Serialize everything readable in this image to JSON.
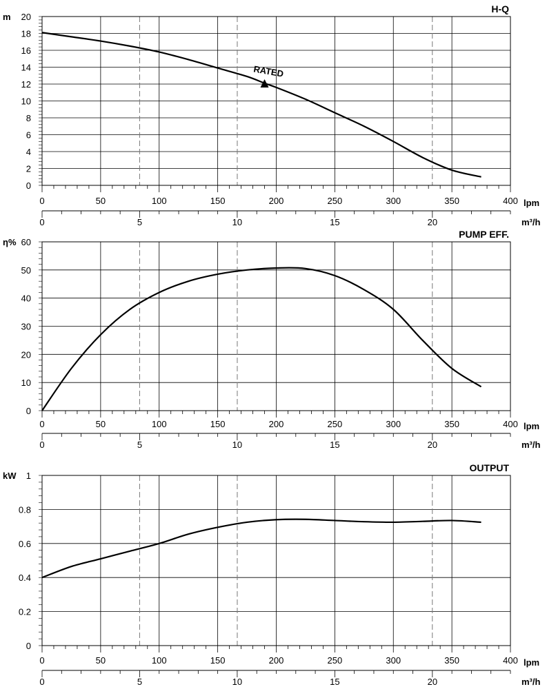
{
  "chart_data": [
    {
      "type": "line",
      "title": "H-Q",
      "ylabel": "m",
      "ylim": [
        0,
        20
      ],
      "yticks": [
        "0",
        "2",
        "4",
        "6",
        "8",
        "10",
        "12",
        "14",
        "16",
        "18",
        "20"
      ],
      "xlabel_primary": "lpm",
      "xlabel_secondary": "m³/h",
      "xlim": [
        0,
        400
      ],
      "xticks_primary": [
        "0",
        "50",
        "100",
        "150",
        "200",
        "250",
        "300",
        "350",
        "400"
      ],
      "xticks_secondary": [
        "0",
        "5",
        "10",
        "15",
        "20"
      ],
      "dashed_x": [
        83.3,
        166.7,
        333.3
      ],
      "series": [
        {
          "name": "H-Q",
          "x": [
            0,
            25,
            50,
            75,
            100,
            125,
            150,
            175,
            190,
            200,
            225,
            250,
            275,
            300,
            325,
            350,
            375
          ],
          "y": [
            18.1,
            17.6,
            17.1,
            16.5,
            15.8,
            14.9,
            13.9,
            12.9,
            12.1,
            11.6,
            10.2,
            8.6,
            7.0,
            5.2,
            3.3,
            1.8,
            1.0
          ]
        }
      ],
      "annotation": {
        "label": "RATED",
        "x": 190,
        "y": 12
      }
    },
    {
      "type": "line",
      "title": "PUMP EFF.",
      "ylabel": "η%",
      "ylim": [
        0,
        60
      ],
      "yticks": [
        "0",
        "10",
        "20",
        "30",
        "40",
        "50",
        "60"
      ],
      "xlabel_primary": "lpm",
      "xlabel_secondary": "m³/h",
      "xlim": [
        0,
        400
      ],
      "xticks_primary": [
        "0",
        "50",
        "100",
        "150",
        "200",
        "250",
        "300",
        "350",
        "400"
      ],
      "xticks_secondary": [
        "0",
        "5",
        "10",
        "15",
        "20"
      ],
      "dashed_x": [
        83.3,
        166.7,
        333.3
      ],
      "series": [
        {
          "name": "PUMP EFF.",
          "x": [
            0,
            25,
            50,
            75,
            100,
            125,
            150,
            175,
            200,
            225,
            250,
            275,
            300,
            325,
            350,
            375
          ],
          "y": [
            0,
            15,
            27,
            36,
            42,
            46,
            48.5,
            50,
            50.7,
            50.5,
            48,
            43,
            36,
            25,
            15,
            8.5
          ]
        }
      ]
    },
    {
      "type": "line",
      "title": "OUTPUT",
      "ylabel": "kW",
      "ylim": [
        0,
        1
      ],
      "yticks": [
        "0",
        "0.2",
        "0.4",
        "0.6",
        "0.8",
        "1"
      ],
      "xlabel_primary": "lpm",
      "xlabel_secondary": "m³/h",
      "xlim": [
        0,
        400
      ],
      "xticks_primary": [
        "0",
        "50",
        "100",
        "150",
        "200",
        "250",
        "300",
        "350",
        "400"
      ],
      "xticks_secondary": [
        "0",
        "5",
        "10",
        "15",
        "20"
      ],
      "dashed_x": [
        83.3,
        166.7,
        333.3
      ],
      "series": [
        {
          "name": "OUTPUT",
          "x": [
            0,
            25,
            50,
            75,
            100,
            125,
            150,
            175,
            200,
            225,
            250,
            275,
            300,
            325,
            350,
            375
          ],
          "y": [
            0.4,
            0.465,
            0.51,
            0.555,
            0.6,
            0.655,
            0.695,
            0.725,
            0.74,
            0.742,
            0.735,
            0.728,
            0.725,
            0.73,
            0.735,
            0.725
          ]
        }
      ]
    }
  ]
}
